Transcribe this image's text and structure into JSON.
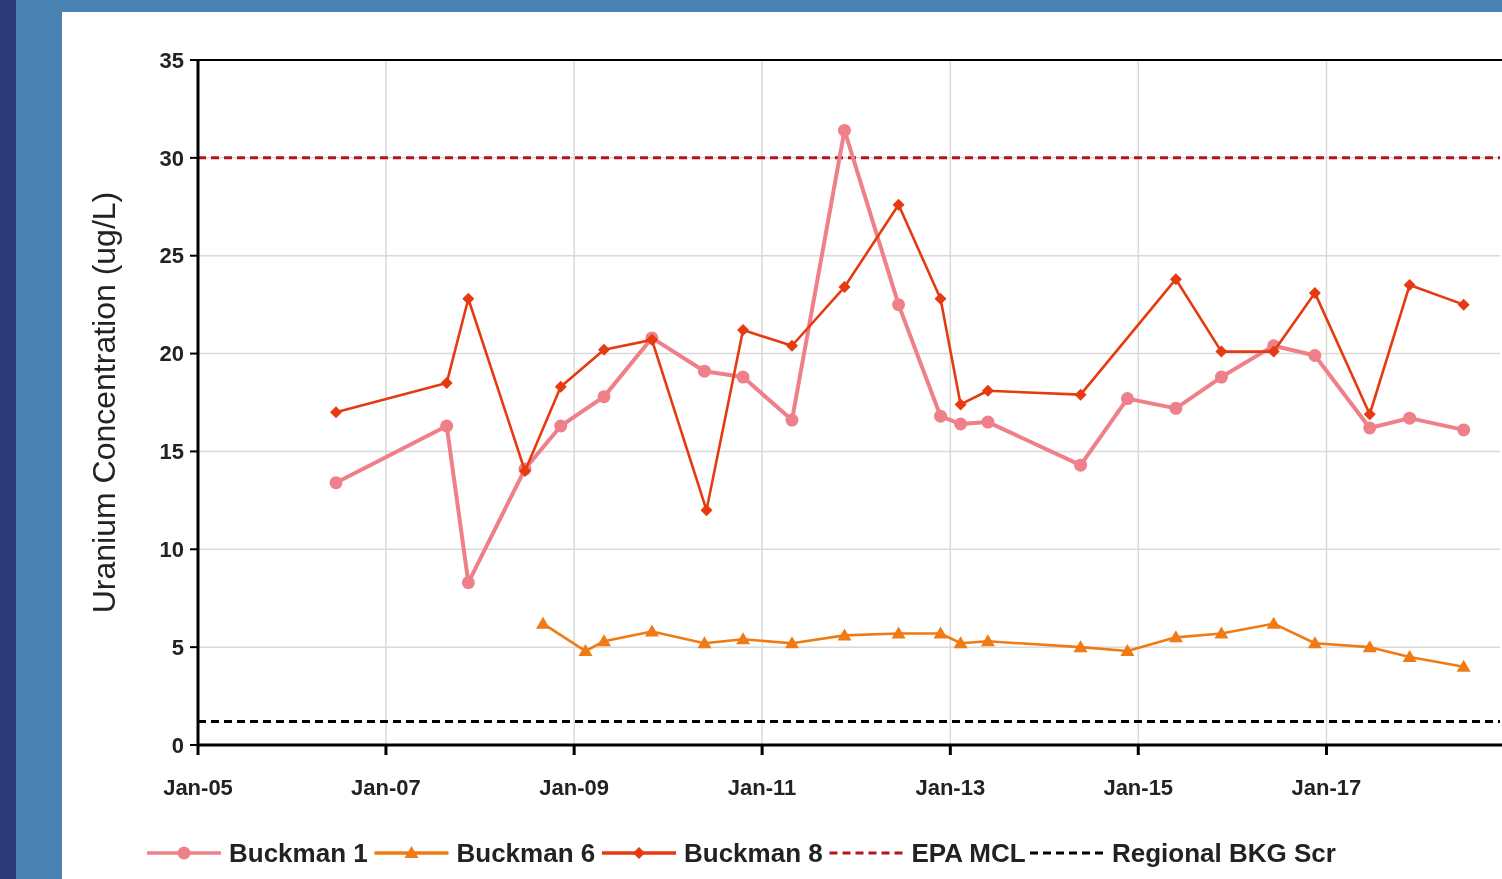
{
  "chart_data": {
    "type": "line",
    "ylabel": "Uranium Concentration (ug/L)",
    "xlim": [
      "2005-01-01",
      "2018-11-06"
    ],
    "xticks": [
      {
        "value": "2005-01-01",
        "label": "Jan-05"
      },
      {
        "value": "2007-01-01",
        "label": "Jan-07"
      },
      {
        "value": "2009-01-01",
        "label": "Jan-09"
      },
      {
        "value": "2011-01-01",
        "label": "Jan-11"
      },
      {
        "value": "2013-01-01",
        "label": "Jan-13"
      },
      {
        "value": "2015-01-01",
        "label": "Jan-15"
      },
      {
        "value": "2017-01-01",
        "label": "Jan-17"
      }
    ],
    "ylim": [
      0,
      35
    ],
    "yticks": [
      0,
      5,
      10,
      15,
      20,
      25,
      30,
      35
    ],
    "grid": true,
    "legend": "bottom",
    "line_style": "solid",
    "series": [
      {
        "name": "Buckman 1",
        "color": "#ef7f88",
        "marker": "circle",
        "x": [
          "2006-06-21",
          "2007-08-25",
          "2007-11-17",
          "2008-06-24",
          "2008-11-10",
          "2009-04-27",
          "2009-10-30",
          "2010-05-22",
          "2010-10-19",
          "2011-04-27",
          "2011-11-17",
          "2012-06-14",
          "2012-11-24",
          "2013-02-10",
          "2013-05-27",
          "2014-05-22",
          "2014-11-20",
          "2015-05-27",
          "2015-11-20",
          "2016-06-10",
          "2016-11-17",
          "2017-06-18",
          "2017-11-20",
          "2018-06-18"
        ],
        "values": [
          13.4,
          16.3,
          8.3,
          14.1,
          16.3,
          17.8,
          20.8,
          19.1,
          18.8,
          16.6,
          31.4,
          22.5,
          16.8,
          16.4,
          16.5,
          14.3,
          17.7,
          17.2,
          18.8,
          20.4,
          19.9,
          16.2,
          16.7,
          16.1
        ]
      },
      {
        "name": "Buckman 6",
        "color": "#f07a14",
        "marker": "triangle",
        "x": [
          "2008-09-02",
          "2009-02-14",
          "2009-04-27",
          "2009-10-30",
          "2010-05-22",
          "2010-10-19",
          "2011-04-27",
          "2011-11-17",
          "2012-06-14",
          "2012-11-24",
          "2013-02-10",
          "2013-05-27",
          "2014-05-22",
          "2014-11-20",
          "2015-05-27",
          "2015-11-20",
          "2016-06-10",
          "2016-11-17",
          "2017-06-18",
          "2017-11-20",
          "2018-06-18"
        ],
        "values": [
          6.2,
          4.8,
          5.3,
          5.8,
          5.2,
          5.4,
          5.2,
          5.6,
          5.7,
          5.7,
          5.2,
          5.3,
          5.0,
          4.8,
          5.5,
          5.7,
          6.2,
          5.2,
          5.0,
          4.5,
          4.0
        ]
      },
      {
        "name": "Buckman 8",
        "color": "#e63a10",
        "marker": "diamond",
        "x": [
          "2006-06-21",
          "2007-08-25",
          "2007-11-17",
          "2008-06-24",
          "2008-11-10",
          "2009-04-27",
          "2009-10-30",
          "2010-05-30",
          "2010-10-19",
          "2011-04-27",
          "2011-11-17",
          "2012-06-14",
          "2012-11-24",
          "2013-02-10",
          "2013-05-27",
          "2014-05-22",
          "2015-05-27",
          "2015-11-20",
          "2016-06-10",
          "2016-11-17",
          "2017-06-18",
          "2017-11-20",
          "2018-06-18"
        ],
        "values": [
          17.0,
          18.5,
          22.8,
          14.0,
          18.3,
          20.2,
          20.7,
          12.0,
          21.2,
          20.4,
          23.4,
          27.6,
          22.8,
          17.4,
          18.1,
          17.9,
          23.8,
          20.1,
          20.1,
          23.1,
          16.9,
          23.5,
          22.5
        ]
      }
    ],
    "ref_lines": [
      {
        "axis": "y",
        "value": 30,
        "label": "EPA MCL",
        "color": "#b5121b",
        "line_style": "dashed"
      },
      {
        "axis": "y",
        "value": 1.2,
        "label": "Regional BKG Scr",
        "color": "#000000",
        "line_style": "dashed"
      }
    ]
  }
}
